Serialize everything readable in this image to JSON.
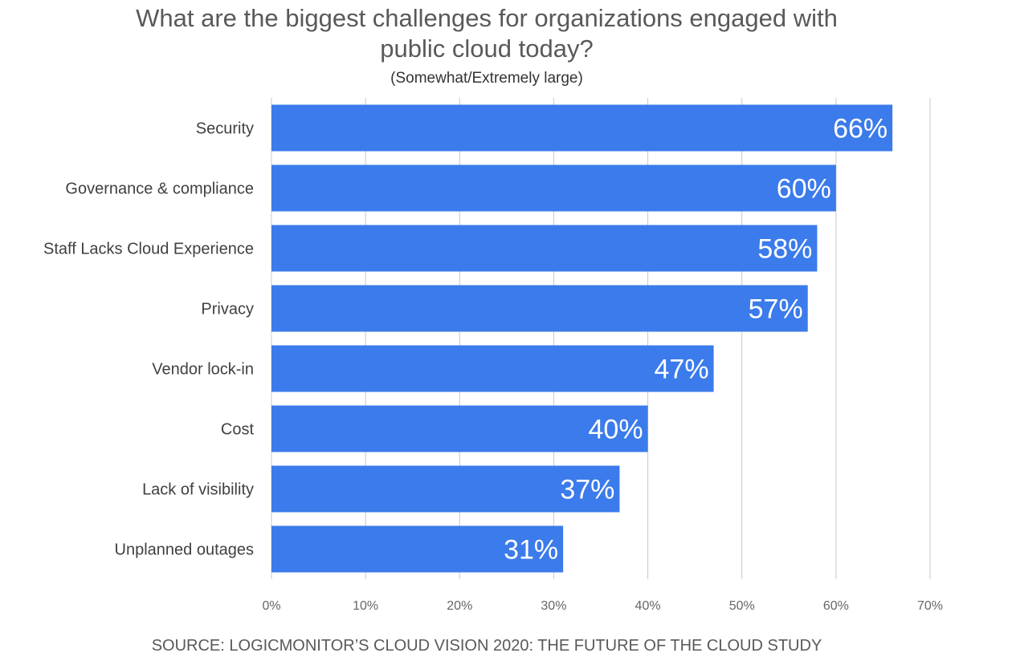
{
  "chart_data": {
    "type": "bar",
    "orientation": "horizontal",
    "title": "What are the biggest challenges for organizations engaged with public cloud today?",
    "subtitle": "(Somewhat/Extremely large)",
    "categories": [
      "Security",
      "Governance & compliance",
      "Staff Lacks Cloud Experience",
      "Privacy",
      "Vendor lock-in",
      "Cost",
      "Lack of visibility",
      "Unplanned outages"
    ],
    "values": [
      66,
      60,
      58,
      57,
      47,
      40,
      37,
      31
    ],
    "data_labels": [
      "66%",
      "60%",
      "58%",
      "57%",
      "47%",
      "40%",
      "37%",
      "31%"
    ],
    "xlim": [
      0,
      70
    ],
    "x_ticks": [
      "0%",
      "10%",
      "20%",
      "30%",
      "40%",
      "50%",
      "60%",
      "70%"
    ],
    "xlabel": "",
    "ylabel": "",
    "grid": true,
    "legend": "none",
    "bar_color": "#3b7beb"
  },
  "source": "SOURCE: LOGICMONITOR’S CLOUD VISION 2020: THE FUTURE OF THE CLOUD STUDY"
}
